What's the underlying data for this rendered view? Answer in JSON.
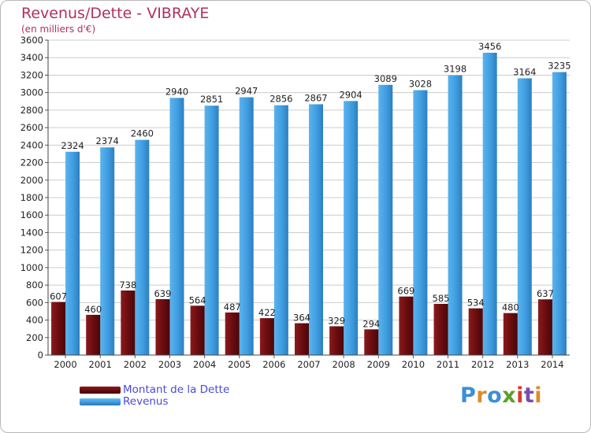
{
  "title": "Revenus/Dette - VIBRAYE",
  "subtitle": "(en milliers d'€)",
  "logo": {
    "text": "Proxiti",
    "colors": [
      "#3c8fd4",
      "#e08a2a",
      "#3c8fd4",
      "#5aa02c",
      "#d93a2a",
      "#7a4bb0",
      "#e08a2a"
    ]
  },
  "colors": {
    "dette": "#6b0d10",
    "revenus": "#3f9de0",
    "grid": "#cccccc",
    "title": "#b03060",
    "legend_text": "#4a4ad8"
  },
  "chart_data": {
    "type": "bar",
    "categories": [
      "2000",
      "2001",
      "2002",
      "2003",
      "2004",
      "2005",
      "2006",
      "2007",
      "2008",
      "2009",
      "2010",
      "2011",
      "2012",
      "2013",
      "2014"
    ],
    "series": [
      {
        "name": "Montant de la Dette",
        "values": [
          607,
          460,
          738,
          639,
          564,
          487,
          422,
          364,
          329,
          294,
          669,
          585,
          534,
          480,
          637
        ]
      },
      {
        "name": "Revenus",
        "values": [
          2324,
          2374,
          2460,
          2940,
          2851,
          2947,
          2856,
          2867,
          2904,
          3089,
          3028,
          3198,
          3456,
          3164,
          3235
        ]
      }
    ],
    "ylim": [
      0,
      3600
    ],
    "yticks": [
      0,
      200,
      400,
      600,
      800,
      1000,
      1200,
      1400,
      1600,
      1800,
      2000,
      2200,
      2400,
      2600,
      2800,
      3000,
      3200,
      3400,
      3600
    ],
    "grid": true,
    "legend_position": "bottom-left"
  }
}
